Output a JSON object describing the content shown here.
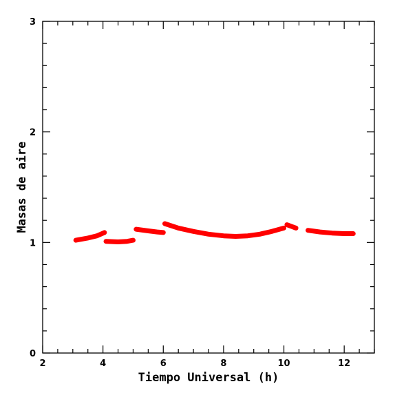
{
  "chart_data": {
    "type": "scatter",
    "title": "",
    "xlabel": "Tiempo Universal (h)",
    "ylabel": "Masas de aire",
    "xlim": [
      2,
      13
    ],
    "ylim": [
      0,
      3
    ],
    "x_ticks": [
      2,
      4,
      6,
      8,
      10,
      12
    ],
    "x_tick_labels": [
      "2",
      "4",
      "6",
      "8",
      "10",
      "12"
    ],
    "y_ticks": [
      0,
      1,
      2,
      3
    ],
    "y_tick_labels": [
      "0",
      "1",
      "2",
      "3"
    ],
    "grid": false,
    "legend": "none",
    "series_color": "#ff0000",
    "segments": [
      {
        "x": [
          3.1,
          3.5,
          3.8,
          4.05
        ],
        "y": [
          1.02,
          1.04,
          1.06,
          1.09
        ]
      },
      {
        "x": [
          4.1,
          4.5,
          4.8,
          5.0
        ],
        "y": [
          1.01,
          1.005,
          1.01,
          1.02
        ]
      },
      {
        "x": [
          5.1,
          5.5,
          5.8,
          6.0
        ],
        "y": [
          1.12,
          1.105,
          1.095,
          1.09
        ]
      },
      {
        "x": [
          6.05,
          6.5,
          7.0,
          7.5,
          8.0,
          8.4,
          8.8,
          9.2,
          9.6,
          10.0
        ],
        "y": [
          1.17,
          1.13,
          1.1,
          1.075,
          1.06,
          1.055,
          1.06,
          1.075,
          1.1,
          1.13
        ]
      },
      {
        "x": [
          10.1,
          10.25,
          10.4
        ],
        "y": [
          1.16,
          1.145,
          1.13
        ]
      },
      {
        "x": [
          10.8,
          11.2,
          11.6,
          12.0,
          12.3
        ],
        "y": [
          1.11,
          1.095,
          1.085,
          1.08,
          1.08
        ]
      }
    ]
  }
}
